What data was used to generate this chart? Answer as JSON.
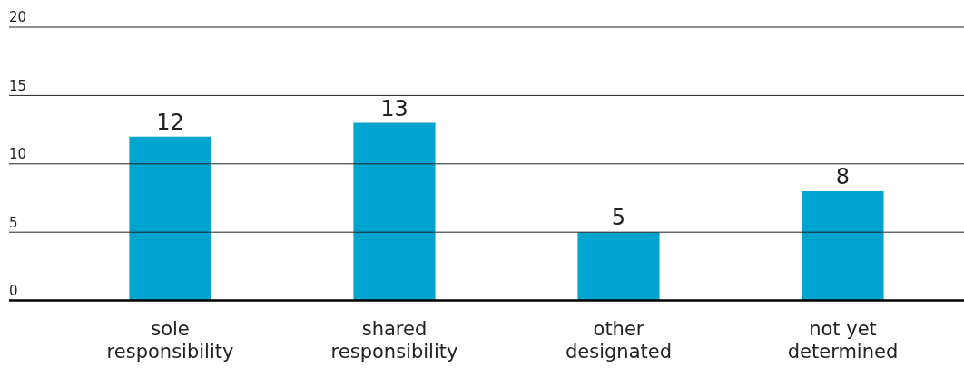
{
  "chart_data": {
    "type": "bar",
    "categories": [
      "sole responsibility",
      "shared responsibility",
      "other designated",
      "not yet determined"
    ],
    "values": [
      12,
      13,
      5,
      8
    ],
    "color": "#00a5cf",
    "ylim": [
      0,
      20
    ],
    "yticks": [
      0,
      5,
      10,
      15,
      20
    ],
    "grid": "y",
    "data_labels": true,
    "legend": false
  }
}
